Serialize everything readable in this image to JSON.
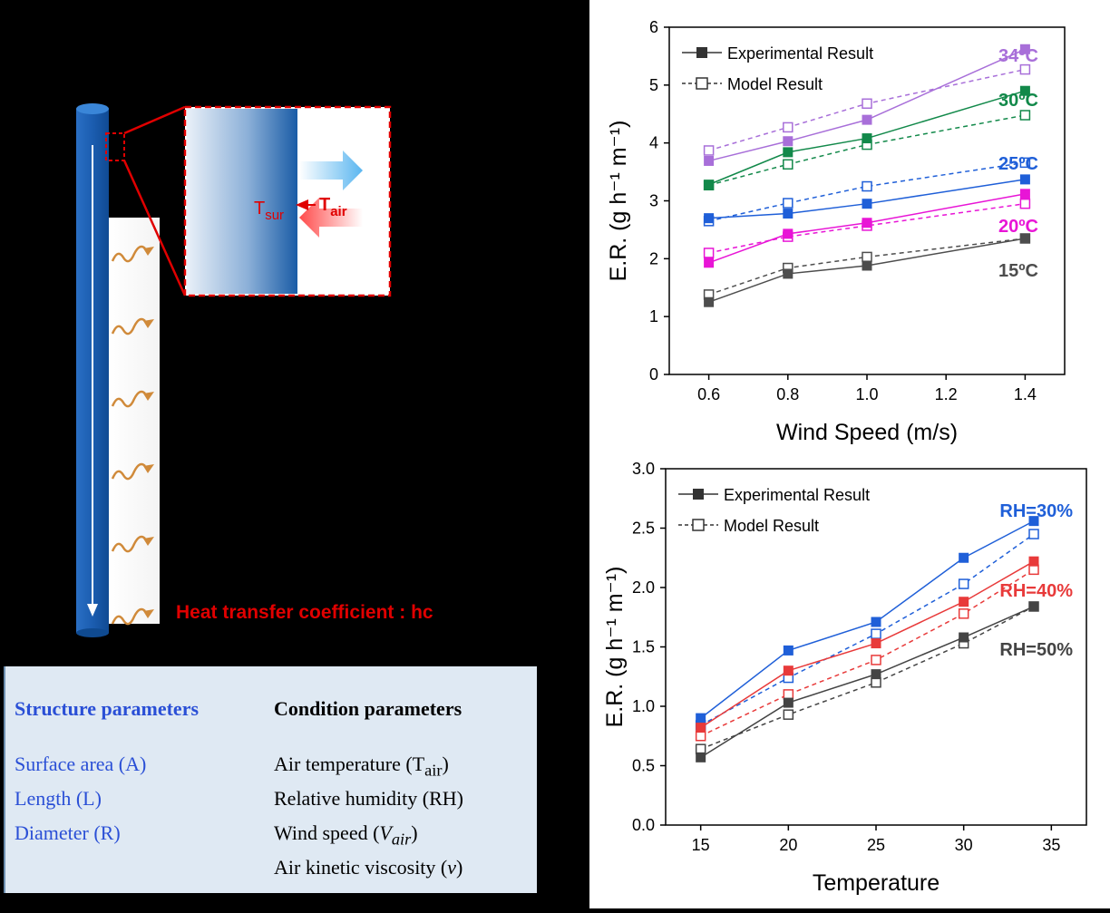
{
  "diagram": {
    "t_sur_base": "T",
    "t_sur_sub": "sur",
    "t_air_base": "T",
    "t_air_sub": "air",
    "heat_label": "Heat transfer coefficient : hc"
  },
  "params": {
    "structure_header": "Structure parameters",
    "condition_header": "Condition parameters",
    "structure_items": [
      "Surface area (A)",
      "Length (L)",
      "Diameter (R)"
    ],
    "condition_items": [
      {
        "text": "Air temperature (T",
        "sub": "air",
        "suffix": ")"
      },
      {
        "text": "Relative humidity (RH)",
        "sub": "",
        "suffix": ""
      },
      {
        "text": "Wind speed (",
        "sub": "V",
        "italic_sub": "air",
        "suffix": ")"
      },
      {
        "text": "Air kinetic viscosity (",
        "sub": "ν",
        "suffix": ")"
      }
    ]
  },
  "colors": {
    "c34": "#a86fd9",
    "c30": "#12894a",
    "c25": "#1f5fd8",
    "c20": "#e815d6",
    "c15": "#4d4d4d",
    "rh30": "#1f5fd8",
    "rh40": "#e83a3a",
    "rh50": "#444444"
  },
  "chart_data": [
    {
      "type": "line",
      "xlabel": "Wind Speed (m/s)",
      "ylabel": "E.R. (g h⁻¹ m⁻¹)",
      "xlim": [
        0.5,
        1.5
      ],
      "ylim": [
        0,
        6
      ],
      "xticks": [
        "0.6",
        "0.8",
        "1.0",
        "1.2",
        "1.4"
      ],
      "yticks": [
        "0",
        "1",
        "2",
        "3",
        "4",
        "5",
        "6"
      ],
      "x": [
        0.6,
        0.8,
        1.0,
        1.4
      ],
      "legend": [
        "Experimental Result",
        "Model Result"
      ],
      "series": [
        {
          "name": "34ºC",
          "experimental": [
            3.69,
            4.03,
            4.4,
            5.62
          ],
          "model": [
            3.87,
            4.27,
            4.68,
            5.27
          ]
        },
        {
          "name": "30ºC",
          "experimental": [
            3.28,
            3.84,
            4.08,
            4.9
          ],
          "model": [
            3.27,
            3.63,
            3.97,
            4.48
          ]
        },
        {
          "name": "25ºC",
          "experimental": [
            2.7,
            2.78,
            2.95,
            3.37
          ],
          "model": [
            2.65,
            2.96,
            3.25,
            3.66
          ]
        },
        {
          "name": "20ºC",
          "experimental": [
            1.93,
            2.43,
            2.62,
            3.12
          ],
          "model": [
            2.1,
            2.38,
            2.57,
            2.95
          ]
        },
        {
          "name": "15ºC",
          "experimental": [
            1.25,
            1.74,
            1.88,
            2.35
          ],
          "model": [
            1.38,
            1.84,
            2.03,
            2.35
          ]
        }
      ]
    },
    {
      "type": "line",
      "xlabel": "Temperature",
      "ylabel": "E.R. (g h⁻¹ m⁻¹)",
      "xlim": [
        13,
        37
      ],
      "ylim": [
        0,
        3.0
      ],
      "xticks": [
        "15",
        "20",
        "25",
        "30",
        "35"
      ],
      "yticks": [
        "0.0",
        "0.5",
        "1.0",
        "1.5",
        "2.0",
        "2.5",
        "3.0"
      ],
      "x": [
        15,
        20,
        25,
        30,
        34
      ],
      "legend": [
        "Experimental Result",
        "Model Result"
      ],
      "series": [
        {
          "name": "RH=30%",
          "experimental": [
            0.9,
            1.47,
            1.71,
            2.25,
            2.56
          ],
          "model": [
            0.84,
            1.24,
            1.61,
            2.03,
            2.45
          ]
        },
        {
          "name": "RH=40%",
          "experimental": [
            0.82,
            1.3,
            1.53,
            1.88,
            2.22
          ],
          "model": [
            0.75,
            1.1,
            1.39,
            1.78,
            2.15
          ]
        },
        {
          "name": "RH=50%",
          "experimental": [
            0.57,
            1.03,
            1.27,
            1.58,
            1.84
          ],
          "model": [
            0.64,
            0.93,
            1.2,
            1.53,
            1.84
          ]
        }
      ]
    }
  ]
}
